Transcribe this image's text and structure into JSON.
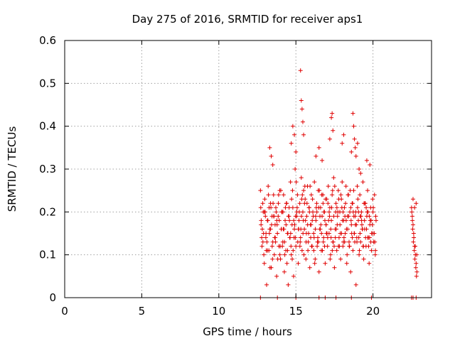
{
  "chart_data": {
    "type": "scatter",
    "title": "Day 275 of 2016, SRMTID for receiver aps1",
    "xlabel": "GPS time / hours",
    "ylabel": "SRMTID / TECUs",
    "xlim": [
      0,
      23.8
    ],
    "ylim": [
      0,
      0.6
    ],
    "x_ticks": [
      0,
      5,
      10,
      15,
      20
    ],
    "x_tick_labels": [
      "0",
      "5",
      "10",
      "15",
      "20"
    ],
    "y_ticks": [
      0,
      0.1,
      0.2,
      0.3,
      0.4,
      0.5,
      0.6
    ],
    "y_tick_labels": [
      "0",
      "0.1",
      "0.2",
      "0.3",
      "0.4",
      "0.5",
      "0.6"
    ],
    "grid": true,
    "legend": "none",
    "marker": "plus",
    "color": "#e00000",
    "series": [
      {
        "x": [
          12.7,
          12.75,
          12.8,
          12.85,
          12.9,
          12.95,
          13.0,
          13.05,
          13.1,
          13.15,
          13.2,
          13.25,
          13.3,
          13.35,
          13.4,
          13.45,
          13.5,
          13.55,
          13.6,
          13.65,
          13.7,
          13.75,
          13.8,
          13.85,
          13.9,
          13.95,
          14.0,
          14.05,
          14.1,
          14.15,
          14.2,
          14.25,
          14.3,
          14.35,
          14.4,
          14.45,
          14.5,
          14.55,
          14.6,
          14.65,
          14.7,
          14.75,
          14.8,
          14.85,
          14.9,
          14.95,
          15.0,
          15.05,
          15.1,
          15.15,
          15.2,
          15.25,
          15.3,
          15.35,
          15.4,
          15.45,
          15.5,
          15.55,
          15.6,
          15.65,
          15.7,
          15.75,
          15.8,
          15.85,
          15.9,
          15.95,
          16.0,
          16.05,
          16.1,
          16.15,
          16.2,
          16.25,
          16.3,
          16.35,
          16.4,
          16.45,
          16.5,
          16.55,
          16.6,
          16.65,
          16.7,
          16.75,
          16.8,
          16.85,
          16.9,
          16.95,
          17.0,
          17.05,
          17.1,
          17.15,
          17.2,
          17.25,
          17.3,
          17.35,
          17.4,
          17.45,
          17.5,
          17.55,
          17.6,
          17.65,
          17.7,
          17.75,
          17.8,
          17.85,
          17.9,
          17.95,
          18.0,
          18.05,
          18.1,
          18.15,
          18.2,
          18.25,
          18.3,
          18.35,
          18.4,
          18.45,
          18.5,
          18.55,
          18.6,
          18.65,
          18.7,
          18.75,
          18.8,
          18.85,
          18.9,
          18.95,
          19.0,
          19.05,
          19.1,
          19.15,
          19.2,
          19.25,
          19.3,
          19.35,
          19.4,
          19.45,
          19.5,
          19.55,
          19.6,
          19.65,
          19.7,
          19.75,
          19.8,
          19.85,
          19.9,
          19.95,
          20.0,
          20.05,
          20.1,
          20.15,
          20.2,
          12.72,
          12.82,
          12.92,
          13.02,
          13.12,
          13.22,
          13.32,
          13.42,
          13.52,
          13.62,
          13.72,
          13.82,
          13.92,
          14.02,
          14.12,
          14.22,
          14.32,
          14.42,
          14.52,
          14.62,
          14.72,
          14.82,
          14.92,
          15.02,
          15.12,
          15.22,
          15.32,
          15.42,
          15.52,
          15.62,
          15.72,
          15.82,
          15.92,
          16.02,
          16.12,
          16.22,
          16.32,
          16.42,
          16.52,
          16.62,
          16.72,
          16.82,
          16.92,
          17.02,
          17.12,
          17.22,
          17.32,
          17.42,
          17.52,
          17.62,
          17.72,
          17.82,
          17.92,
          18.02,
          18.12,
          18.22,
          18.32,
          18.42,
          18.52,
          18.62,
          18.72,
          18.82,
          18.92,
          19.02,
          19.12,
          19.22,
          19.32,
          19.42,
          19.52,
          19.62,
          19.72,
          19.82,
          19.92,
          20.02,
          20.12,
          12.78,
          12.88,
          12.98,
          13.08,
          13.18,
          13.28,
          13.38,
          13.48,
          13.58,
          13.68,
          13.78,
          13.88,
          13.98,
          14.08,
          14.18,
          14.28,
          14.38,
          14.48,
          14.58,
          14.68,
          14.78,
          14.88,
          14.98,
          15.08,
          15.18,
          15.28,
          15.38,
          15.48,
          15.58,
          15.68,
          15.78,
          15.88,
          15.98,
          16.08,
          16.18,
          16.28,
          16.38,
          16.48,
          16.58,
          16.68,
          16.78,
          16.88,
          16.98,
          17.08,
          17.18,
          17.28,
          17.38,
          17.48,
          17.58,
          17.68,
          17.78,
          17.88,
          17.98,
          18.08,
          18.18,
          18.28,
          18.38,
          18.48,
          18.58,
          18.68,
          18.78,
          18.88,
          18.98,
          19.08,
          19.18,
          19.28,
          19.38,
          19.48,
          19.58,
          19.68,
          19.78,
          19.88,
          19.98,
          20.08,
          20.18,
          12.74,
          12.86,
          12.96,
          13.06,
          13.16,
          13.26,
          13.36,
          13.46,
          13.56,
          13.66,
          13.76,
          13.86,
          13.96,
          14.06,
          14.16,
          14.26,
          14.36,
          14.46,
          14.56,
          14.66,
          14.76,
          14.86,
          14.96,
          15.06,
          15.16,
          15.26,
          15.36,
          15.46,
          15.56,
          15.66,
          15.76,
          15.86,
          15.96,
          16.06,
          16.16,
          16.26,
          16.36,
          16.46,
          16.56,
          16.66,
          16.76,
          16.86,
          16.96,
          17.06,
          17.16,
          17.26,
          17.36,
          17.46,
          17.56,
          17.66,
          17.76,
          17.86,
          17.96,
          18.06,
          18.16,
          18.26,
          18.36,
          18.46,
          18.56,
          18.66,
          18.76,
          18.86,
          18.96,
          19.06,
          19.16,
          19.26,
          19.36,
          19.46,
          19.56,
          19.66,
          19.76,
          19.86,
          19.96,
          20.06,
          20.16,
          13.3,
          13.4,
          13.5,
          14.7,
          14.8,
          14.9,
          15.0,
          15.3,
          15.35,
          15.4,
          15.45,
          15.5,
          16.3,
          16.5,
          16.7,
          17.2,
          17.3,
          17.35,
          17.4,
          18.0,
          18.1,
          18.6,
          18.7,
          18.75,
          18.8,
          18.85,
          18.9,
          19.0,
          19.1,
          19.2,
          19.6,
          19.8,
          22.5,
          22.55,
          22.6,
          22.65,
          22.7,
          22.75,
          22.8,
          22.85,
          22.52,
          22.58,
          22.62,
          22.68,
          22.72,
          22.78,
          22.82,
          22.56,
          22.64,
          22.74,
          22.84,
          22.6,
          22.7,
          22.8,
          12.7,
          13.8,
          15.0,
          16.5,
          16.9,
          17.6,
          18.6,
          19.9,
          22.5,
          22.6,
          22.8
        ],
        "y": [
          0.25,
          0.18,
          0.12,
          0.22,
          0.15,
          0.08,
          0.2,
          0.14,
          0.03,
          0.18,
          0.26,
          0.11,
          0.16,
          0.22,
          0.07,
          0.19,
          0.13,
          0.24,
          0.1,
          0.17,
          0.21,
          0.05,
          0.15,
          0.19,
          0.12,
          0.25,
          0.09,
          0.16,
          0.2,
          0.13,
          0.24,
          0.06,
          0.18,
          0.11,
          0.22,
          0.15,
          0.03,
          0.19,
          0.14,
          0.27,
          0.1,
          0.17,
          0.21,
          0.05,
          0.16,
          0.3,
          0.12,
          0.19,
          0.24,
          0.08,
          0.18,
          0.22,
          0.14,
          0.28,
          0.11,
          0.2,
          0.25,
          0.16,
          0.23,
          0.09,
          0.19,
          0.26,
          0.13,
          0.21,
          0.07,
          0.17,
          0.24,
          0.12,
          0.2,
          0.15,
          0.27,
          0.09,
          0.18,
          0.22,
          0.13,
          0.25,
          0.06,
          0.16,
          0.21,
          0.11,
          0.19,
          0.24,
          0.14,
          0.2,
          0.08,
          0.17,
          0.23,
          0.12,
          0.26,
          0.15,
          0.21,
          0.1,
          0.18,
          0.24,
          0.13,
          0.28,
          0.07,
          0.16,
          0.22,
          0.11,
          0.19,
          0.25,
          0.14,
          0.2,
          0.09,
          0.23,
          0.27,
          0.12,
          0.18,
          0.21,
          0.15,
          0.26,
          0.08,
          0.19,
          0.24,
          0.13,
          0.2,
          0.06,
          0.17,
          0.22,
          0.11,
          0.25,
          0.15,
          0.19,
          0.03,
          0.14,
          0.21,
          0.18,
          0.1,
          0.24,
          0.13,
          0.2,
          0.16,
          0.27,
          0.09,
          0.18,
          0.22,
          0.12,
          0.19,
          0.25,
          0.14,
          0.08,
          0.17,
          0.21,
          0.11,
          0.15,
          0.2,
          0.13,
          0.24,
          0.1,
          0.18,
          0.21,
          0.16,
          0.1,
          0.19,
          0.13,
          0.24,
          0.07,
          0.17,
          0.22,
          0.14,
          0.2,
          0.09,
          0.18,
          0.25,
          0.12,
          0.16,
          0.21,
          0.08,
          0.19,
          0.14,
          0.23,
          0.11,
          0.17,
          0.27,
          0.13,
          0.2,
          0.16,
          0.24,
          0.1,
          0.18,
          0.22,
          0.15,
          0.26,
          0.12,
          0.19,
          0.08,
          0.21,
          0.14,
          0.25,
          0.17,
          0.11,
          0.2,
          0.23,
          0.15,
          0.18,
          0.09,
          0.21,
          0.13,
          0.26,
          0.16,
          0.2,
          0.12,
          0.24,
          0.18,
          0.14,
          0.22,
          0.1,
          0.19,
          0.25,
          0.15,
          0.2,
          0.13,
          0.17,
          0.23,
          0.11,
          0.19,
          0.16,
          0.22,
          0.14,
          0.2,
          0.12,
          0.18,
          0.15,
          0.21,
          0.13,
          0.14,
          0.2,
          0.23,
          0.11,
          0.18,
          0.15,
          0.21,
          0.09,
          0.19,
          0.13,
          0.17,
          0.24,
          0.12,
          0.2,
          0.16,
          0.1,
          0.22,
          0.15,
          0.18,
          0.12,
          0.25,
          0.14,
          0.19,
          0.21,
          0.16,
          0.13,
          0.23,
          0.18,
          0.26,
          0.15,
          0.11,
          0.2,
          0.17,
          0.23,
          0.14,
          0.19,
          0.12,
          0.21,
          0.16,
          0.24,
          0.13,
          0.18,
          0.15,
          0.22,
          0.19,
          0.14,
          0.25,
          0.12,
          0.2,
          0.17,
          0.23,
          0.15,
          0.21,
          0.13,
          0.19,
          0.16,
          0.24,
          0.12,
          0.18,
          0.22,
          0.15,
          0.2,
          0.26,
          0.14,
          0.19,
          0.17,
          0.12,
          0.22,
          0.16,
          0.2,
          0.14,
          0.18,
          0.23,
          0.15,
          0.19,
          0.17,
          0.13,
          0.2,
          0.15,
          0.11,
          0.21,
          0.16,
          0.12,
          0.19,
          0.14,
          0.18,
          0.22,
          0.1,
          0.16,
          0.2,
          0.13,
          0.17,
          0.11,
          0.21,
          0.15,
          0.09,
          0.18,
          0.14,
          0.2,
          0.16,
          0.12,
          0.19,
          0.15,
          0.22,
          0.13,
          0.17,
          0.21,
          0.14,
          0.18,
          0.11,
          0.16,
          0.2,
          0.13,
          0.19,
          0.15,
          0.22,
          0.12,
          0.17,
          0.14,
          0.2,
          0.16,
          0.11,
          0.19,
          0.14,
          0.21,
          0.12,
          0.17,
          0.15,
          0.2,
          0.13,
          0.18,
          0.16,
          0.12,
          0.21,
          0.14,
          0.19,
          0.17,
          0.13,
          0.2,
          0.15,
          0.18,
          0.12,
          0.16,
          0.21,
          0.14,
          0.19,
          0.13,
          0.17,
          0.15,
          0.11,
          0.35,
          0.33,
          0.31,
          0.36,
          0.4,
          0.38,
          0.34,
          0.53,
          0.46,
          0.44,
          0.41,
          0.38,
          0.33,
          0.35,
          0.32,
          0.37,
          0.42,
          0.43,
          0.39,
          0.36,
          0.38,
          0.34,
          0.43,
          0.4,
          0.37,
          0.35,
          0.33,
          0.36,
          0.3,
          0.29,
          0.32,
          0.31,
          0.21,
          0.19,
          0.17,
          0.14,
          0.12,
          0.1,
          0.08,
          0.06,
          0.2,
          0.16,
          0.13,
          0.11,
          0.09,
          0.07,
          0.05,
          0.18,
          0.15,
          0.12,
          0.1,
          0.23,
          0.21,
          0.22,
          0.0,
          0.0,
          0.0,
          0.0,
          0.0,
          0.0,
          0.0,
          0.0,
          0.0,
          0.0,
          0.0
        ]
      }
    ]
  }
}
